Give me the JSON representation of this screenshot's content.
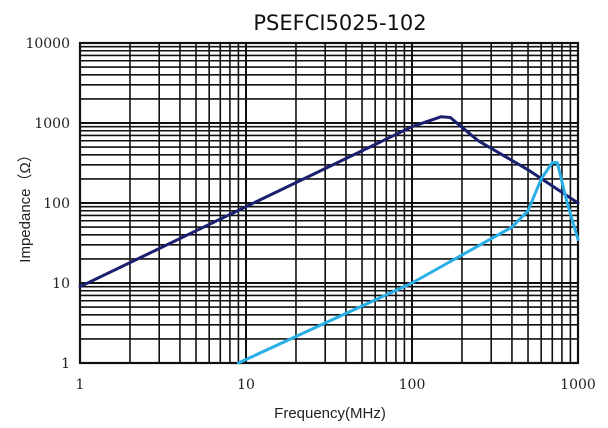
{
  "chart_data": {
    "type": "line",
    "title": "PSEFCI5025-102",
    "xlabel": "Frequency(MHz)",
    "ylabel": "Impedance（Ω）",
    "x_scale": "log",
    "y_scale": "log",
    "xlim": [
      1,
      1000
    ],
    "ylim": [
      1,
      10000
    ],
    "x_ticks": [
      1,
      10,
      100,
      1000
    ],
    "x_tick_labels": [
      "1",
      "10",
      "100",
      "1000"
    ],
    "y_ticks": [
      1,
      10,
      100,
      1000,
      10000
    ],
    "y_tick_labels": [
      "1",
      "10",
      "100",
      "1000",
      "10000"
    ],
    "grid": true,
    "legend": "none",
    "series": [
      {
        "color": "#1a1f6e",
        "points": [
          [
            1,
            9
          ],
          [
            10,
            90
          ],
          [
            100,
            900
          ],
          [
            150,
            1200
          ],
          [
            170,
            1170
          ],
          [
            250,
            600
          ],
          [
            500,
            260
          ],
          [
            1000,
            100
          ]
        ]
      },
      {
        "color": "#29aee6",
        "points": [
          [
            9,
            1
          ],
          [
            100,
            10
          ],
          [
            400,
            50
          ],
          [
            500,
            80
          ],
          [
            600,
            200
          ],
          [
            700,
            320
          ],
          [
            750,
            320
          ],
          [
            850,
            110
          ],
          [
            1000,
            35
          ]
        ]
      }
    ]
  }
}
